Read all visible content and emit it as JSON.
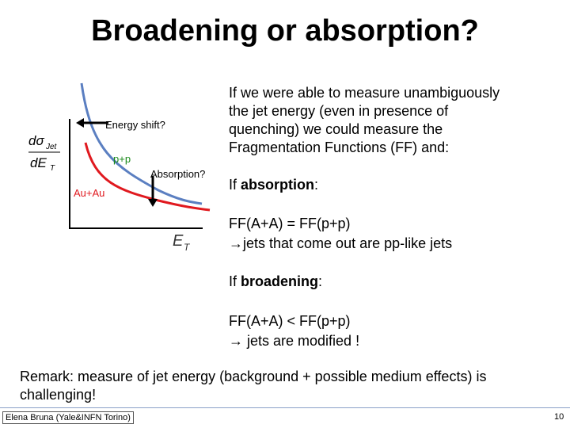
{
  "title": "Broadening or absorption?",
  "diagram": {
    "y_label": {
      "numerator": "dσ",
      "numerator_sub": "Jet",
      "denominator": "dE",
      "denominator_sub": "T"
    },
    "x_label": {
      "main": "E",
      "sub": "T"
    },
    "energy_shift": "Energy shift?",
    "pp_label": "p+p",
    "absorption": "Absorption?",
    "auau_label": "Au+Au"
  },
  "body": {
    "intro": [
      "If we were able to measure unambiguously",
      "the jet energy (even in presence of",
      "quenching) we could measure the",
      "Fragmentation Functions (FF) and:"
    ],
    "case_absorption": {
      "prefix": "If ",
      "bold": "absorption",
      "suffix": ":"
    },
    "absorption_lines": [
      "FF(A+A) = FF(p+p)",
      "→jets that come out are pp-like jets"
    ],
    "case_broadening": {
      "prefix": "If ",
      "bold": "broadening",
      "suffix": ":"
    },
    "broadening_lines": [
      "FF(A+A) < FF(p+p)",
      "→ jets are modified !"
    ],
    "remark": [
      "Remark: measure of jet energy (background + possible medium effects) is",
      "challenging!"
    ]
  },
  "footer": {
    "author": "Elena Bruna (Yale&INFN Torino)",
    "page": "10"
  }
}
